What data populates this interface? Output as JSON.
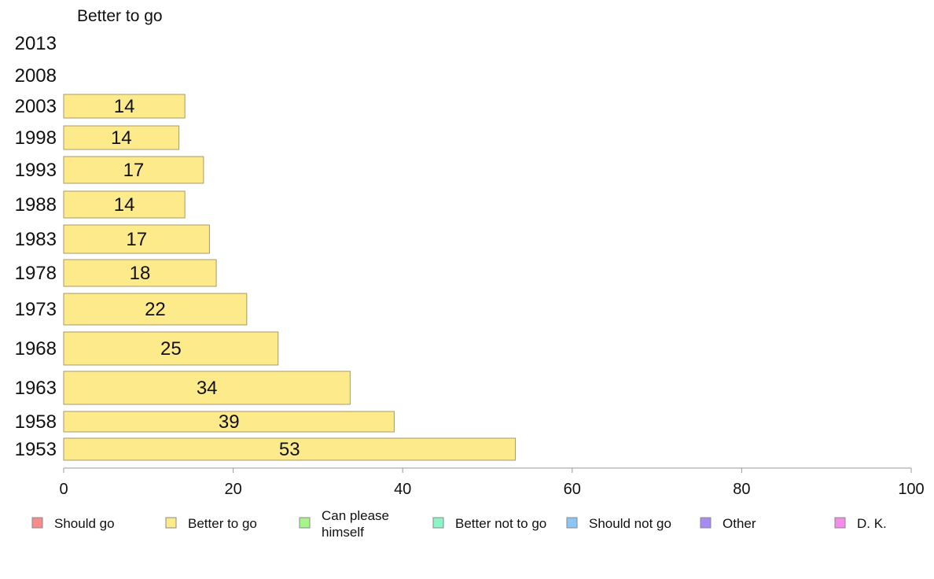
{
  "chart_data": {
    "type": "bar",
    "orientation": "horizontal",
    "title": "Better to go",
    "xlabel": "",
    "ylabel": "",
    "xlim": [
      0,
      100
    ],
    "xticks": [
      0,
      20,
      40,
      60,
      80,
      100
    ],
    "grid": false,
    "categories": [
      "2013",
      "2008",
      "2003",
      "1998",
      "1993",
      "1988",
      "1983",
      "1978",
      "1973",
      "1968",
      "1963",
      "1958",
      "1953"
    ],
    "series": [
      {
        "name": "Better to go",
        "color": "#fdeb8b",
        "values": [
          null,
          null,
          14.3,
          13.6,
          16.5,
          14.3,
          17.2,
          18.0,
          21.6,
          25.3,
          33.8,
          39.0,
          53.3
        ],
        "labels": [
          "",
          "",
          "14",
          "14",
          "17",
          "14",
          "17",
          "18",
          "22",
          "25",
          "34",
          "39",
          "53"
        ]
      }
    ],
    "legend": {
      "position": "bottom",
      "entries": [
        {
          "label": "Should go",
          "color": "#f98b8b"
        },
        {
          "label": "Better to go",
          "color": "#fdeb8b"
        },
        {
          "label": "Can please himself",
          "color": "#a6f58b"
        },
        {
          "label": "Better not to go",
          "color": "#8bf5c6"
        },
        {
          "label": "Should not go",
          "color": "#8bc6f5"
        },
        {
          "label": "Other",
          "color": "#a68bf5"
        },
        {
          "label": "D. K.",
          "color": "#f58bea"
        }
      ]
    }
  }
}
